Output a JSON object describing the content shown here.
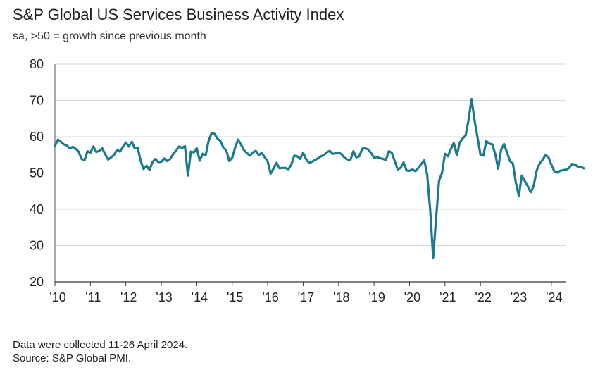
{
  "chart_data": {
    "type": "line",
    "title": "S&P Global US Services Business Activity Index",
    "subtitle": "sa, >50 = growth since previous month",
    "xlabel": "",
    "ylabel": "",
    "ylim": [
      20,
      80
    ],
    "yticks": [
      20,
      30,
      40,
      50,
      60,
      70,
      80
    ],
    "xlim": [
      2010.0,
      2024.42
    ],
    "xticks": [
      {
        "label": "'10",
        "year": 2010
      },
      {
        "label": "'11",
        "year": 2011
      },
      {
        "label": "'12",
        "year": 2012
      },
      {
        "label": "'13",
        "year": 2013
      },
      {
        "label": "'14",
        "year": 2014
      },
      {
        "label": "'15",
        "year": 2015
      },
      {
        "label": "'16",
        "year": 2016
      },
      {
        "label": "'17",
        "year": 2017
      },
      {
        "label": "'18",
        "year": 2018
      },
      {
        "label": "'19",
        "year": 2019
      },
      {
        "label": "'20",
        "year": 2020
      },
      {
        "label": "'21",
        "year": 2021
      },
      {
        "label": "'22",
        "year": 2022
      },
      {
        "label": "'23",
        "year": 2023
      },
      {
        "label": "'24",
        "year": 2024
      }
    ],
    "grid": true,
    "line_color": "#1b7a8c",
    "series": [
      {
        "name": "Business Activity Index",
        "start": "2010-01",
        "frequency": "monthly",
        "values": [
          57.5,
          59.2,
          58.6,
          57.9,
          57.6,
          56.8,
          57.2,
          56.7,
          55.9,
          53.9,
          53.5,
          56.0,
          55.6,
          57.3,
          55.8,
          56.1,
          56.8,
          55.2,
          53.7,
          54.3,
          55.0,
          56.4,
          55.9,
          57.2,
          58.4,
          57.3,
          58.6,
          56.8,
          57.0,
          53.4,
          51.1,
          52.0,
          50.8,
          53.0,
          53.9,
          53.0,
          53.1,
          54.0,
          53.3,
          53.9,
          55.2,
          56.2,
          57.3,
          56.9,
          57.4,
          49.3,
          55.9,
          55.7,
          56.8,
          53.4,
          55.3,
          54.9,
          58.8,
          61.0,
          60.8,
          59.5,
          58.8,
          57.0,
          56.2,
          53.3,
          54.2,
          57.1,
          59.2,
          57.8,
          56.3,
          55.5,
          54.8,
          55.7,
          56.1,
          54.9,
          55.6,
          54.3,
          53.2,
          49.8,
          51.3,
          52.8,
          51.3,
          51.4,
          51.4,
          51.0,
          52.3,
          54.8,
          54.6,
          53.9,
          55.6,
          53.8,
          52.8,
          53.1,
          53.6,
          54.0,
          54.6,
          54.9,
          55.7,
          56.1,
          55.3,
          55.4,
          55.6,
          55.2,
          54.2,
          53.7,
          53.6,
          56.0,
          54.3,
          54.6,
          56.7,
          56.8,
          56.5,
          55.5,
          54.2,
          54.4,
          54.1,
          53.9,
          53.6,
          56.0,
          55.6,
          53.3,
          51.0,
          51.4,
          52.9,
          50.7,
          50.6,
          51.0,
          50.5,
          51.4,
          52.5,
          53.5,
          49.4,
          39.8,
          26.7,
          37.5,
          47.9,
          50.0,
          55.3,
          54.6,
          56.6,
          58.3,
          54.9,
          58.4,
          59.5,
          60.4,
          64.7,
          70.4,
          64.6,
          59.9,
          55.1,
          54.8,
          58.8,
          58.1,
          57.9,
          55.3,
          51.2,
          56.5,
          58.0,
          55.6,
          53.3,
          52.6,
          47.3,
          43.7,
          49.3,
          47.8,
          46.4,
          44.7,
          46.4,
          50.6,
          52.6,
          53.6,
          54.9,
          54.4,
          52.3,
          50.5,
          50.1,
          50.6,
          50.8,
          50.9,
          51.4,
          52.5,
          52.3,
          51.7,
          51.7,
          51.3
        ]
      }
    ]
  },
  "notes": {
    "collection": "Data were collected 11-26 April 2024.",
    "source": "Source: S&P Global PMI."
  }
}
